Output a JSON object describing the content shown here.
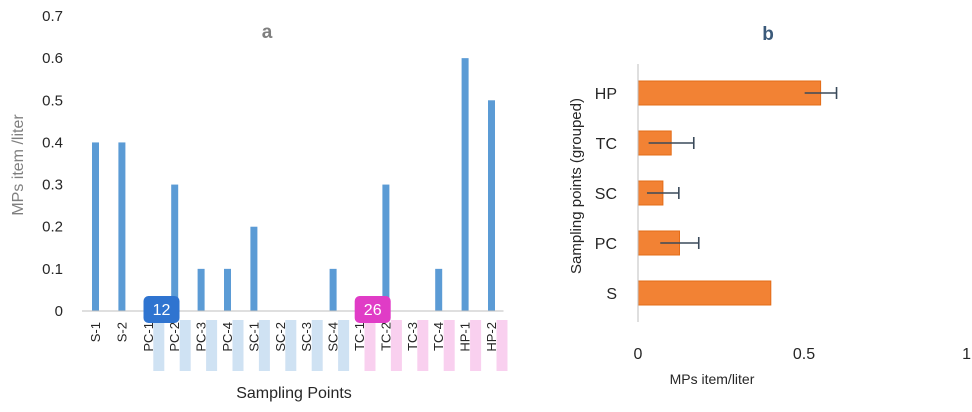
{
  "chart_data": [
    {
      "id": "a",
      "type": "bar",
      "panel_label": "a",
      "title": "",
      "xlabel": "Sampling Points",
      "ylabel": "MPs item /liter",
      "ylim": [
        0,
        0.7
      ],
      "yticks": [
        "0",
        "0.1",
        "0.2",
        "0.3",
        "0.4",
        "0.5",
        "0.6",
        "0.7"
      ],
      "grid": false,
      "bar_color": "#5b9bd5",
      "categories": [
        "S-1",
        "S-2",
        "PC-1",
        "PC-2",
        "PC-3",
        "PC-4",
        "SC-1",
        "SC-2",
        "SC-3",
        "SC-4",
        "TC-1",
        "TC-2",
        "TC-3",
        "TC-4",
        "HP-1",
        "HP-2"
      ],
      "values": [
        0.4,
        0.4,
        0,
        0.3,
        0.1,
        0.1,
        0.2,
        0,
        0,
        0.1,
        0,
        0.3,
        0,
        0.1,
        0.6,
        0.5
      ],
      "label_highlight": [
        "none",
        "none",
        "blue",
        "blue",
        "blue",
        "blue",
        "blue",
        "blue",
        "blue",
        "blue",
        "pink",
        "pink",
        "pink",
        "pink",
        "pink",
        "pink"
      ],
      "highlight_colors": {
        "blue": "#cfe2f3",
        "pink": "#f9d0ef"
      },
      "badges": [
        {
          "text": "12",
          "between": [
            "PC-1",
            "PC-2"
          ],
          "color": "#2f74d0"
        },
        {
          "text": "26",
          "between": [
            "TC-1",
            "TC-2"
          ],
          "color": "#e03cc6"
        }
      ]
    },
    {
      "id": "b",
      "type": "bar",
      "orientation": "horizontal",
      "panel_label": "b",
      "title": "",
      "xlabel": "MPs item/liter",
      "ylabel": "Sampling points (grouped)",
      "xlim": [
        0,
        1
      ],
      "xticks": [
        "0",
        "0.5",
        "1"
      ],
      "grid": false,
      "bar_color": "#f28234",
      "bar_edge_color": "#e36c17",
      "categories": [
        "S",
        "PC",
        "SC",
        "TC",
        "HP"
      ],
      "values": [
        0.4,
        0.125,
        0.075,
        0.1,
        0.55
      ],
      "error": [
        0,
        0.058,
        0.048,
        0.068,
        0.048
      ]
    }
  ]
}
